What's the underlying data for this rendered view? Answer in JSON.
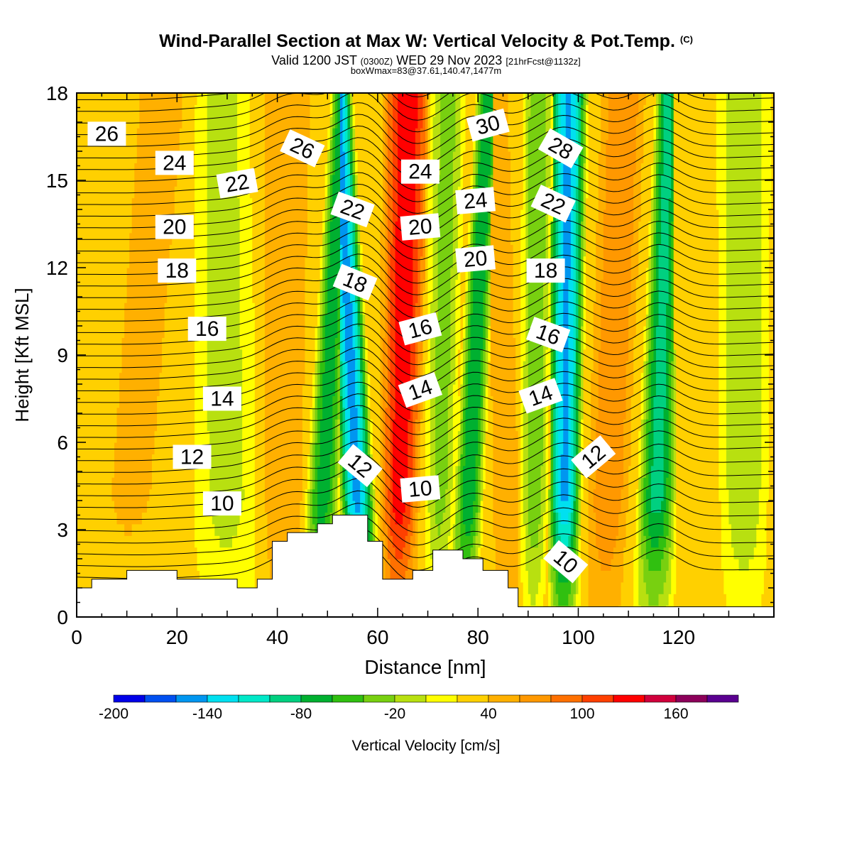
{
  "title": {
    "main": "Wind-Parallel Section at Max W: Vertical Velocity & Pot.Temp.",
    "copyright": "(C)",
    "valid_prefix": "Valid 1200 JST",
    "valid_zulu": "(0300Z)",
    "valid_date": "WED 29 Nov 2023",
    "forecast": "[21hrFcst@1132z]",
    "subtitle": "boxWmax=83@37.61,140.47,1477m"
  },
  "colors": {
    "scale": [
      "#0000e8",
      "#0050f0",
      "#0096f0",
      "#00e0f0",
      "#00e8c8",
      "#00d080",
      "#00b030",
      "#30c010",
      "#78d010",
      "#b8e010",
      "#ffff00",
      "#ffd000",
      "#ffb000",
      "#ff9800",
      "#ff7000",
      "#ff4000",
      "#ff0000",
      "#d0003c",
      "#8c005a",
      "#5a0090"
    ],
    "terrain": "#ffffff",
    "frame": "#000000",
    "isentrope": "#000000"
  },
  "chart_data": {
    "type": "heatmap",
    "xlabel": "Distance [nm]",
    "ylabel": "Height [Kft MSL]",
    "xlim": [
      0,
      139
    ],
    "ylim": [
      0,
      18
    ],
    "x_ticks": [
      0,
      20,
      40,
      60,
      80,
      100,
      120
    ],
    "y_ticks": [
      0,
      3,
      6,
      9,
      12,
      15,
      18
    ],
    "colorbar": {
      "label": "Vertical Velocity [cm/s]",
      "min": -200,
      "max": 200,
      "step": 20,
      "tick_labels": [
        "-200",
        "-140",
        "-80",
        "-20",
        "40",
        "100",
        "160"
      ],
      "tick_values": [
        -200,
        -140,
        -80,
        -20,
        40,
        100,
        160
      ]
    },
    "background_w": 30,
    "w_bands": [
      {
        "x_low": 9,
        "x_high": 17,
        "w": 42
      },
      {
        "x_low": 30,
        "x_high": 29,
        "w": -10
      },
      {
        "x_low": 41,
        "x_high": 42,
        "w": 55
      },
      {
        "x_low": 48,
        "x_high": 53,
        "w": -75
      },
      {
        "x_low": 57,
        "x_high": 52,
        "w": -150
      },
      {
        "x_low": 64,
        "x_high": 66,
        "w": 135
      },
      {
        "x_low": 72,
        "x_high": 74,
        "w": -30
      },
      {
        "x_low": 77,
        "x_high": 82,
        "w": -80
      },
      {
        "x_low": 86,
        "x_high": 84,
        "w": 60
      },
      {
        "x_low": 91,
        "x_high": 92,
        "w": -40
      },
      {
        "x_low": 97,
        "x_high": 98,
        "w": -145
      },
      {
        "x_low": 105,
        "x_high": 109,
        "w": 80
      },
      {
        "x_low": 115,
        "x_high": 118,
        "w": -90
      },
      {
        "x_low": 124,
        "x_high": 120,
        "w": 20
      },
      {
        "x_low": 133,
        "x_high": 133,
        "w": -20
      }
    ],
    "terrain_profile": [
      [
        0,
        1.0
      ],
      [
        3,
        1.3
      ],
      [
        10,
        1.6
      ],
      [
        20,
        1.3
      ],
      [
        32,
        1.0
      ],
      [
        36,
        1.3
      ],
      [
        39,
        2.6
      ],
      [
        42,
        2.9
      ],
      [
        48,
        3.2
      ],
      [
        51,
        3.5
      ],
      [
        58,
        2.6
      ],
      [
        61,
        1.3
      ],
      [
        67,
        1.6
      ],
      [
        71,
        2.3
      ],
      [
        77,
        2.0
      ],
      [
        81,
        1.6
      ],
      [
        86,
        1.0
      ],
      [
        88,
        0.35
      ],
      [
        139,
        0.35
      ]
    ],
    "isentrope_labels": [
      {
        "text": "26",
        "x": 6,
        "y": 16.6,
        "angle": 0
      },
      {
        "text": "24",
        "x": 19.5,
        "y": 15.6,
        "angle": 0
      },
      {
        "text": "20",
        "x": 19.5,
        "y": 13.4,
        "angle": 0
      },
      {
        "text": "18",
        "x": 20,
        "y": 11.9,
        "angle": 0
      },
      {
        "text": "16",
        "x": 26,
        "y": 9.9,
        "angle": 0
      },
      {
        "text": "14",
        "x": 29,
        "y": 7.5,
        "angle": 0
      },
      {
        "text": "12",
        "x": 23,
        "y": 5.5,
        "angle": 0
      },
      {
        "text": "10",
        "x": 29,
        "y": 3.9,
        "angle": 0
      },
      {
        "text": "22",
        "x": 32,
        "y": 14.9,
        "angle": -10
      },
      {
        "text": "26",
        "x": 45,
        "y": 16.1,
        "angle": 25
      },
      {
        "text": "22",
        "x": 55,
        "y": 14.0,
        "angle": 20
      },
      {
        "text": "18",
        "x": 55.5,
        "y": 11.5,
        "angle": 22
      },
      {
        "text": "12",
        "x": 56.5,
        "y": 5.2,
        "angle": 40
      },
      {
        "text": "24",
        "x": 68.5,
        "y": 15.3,
        "angle": 0
      },
      {
        "text": "20",
        "x": 68.5,
        "y": 13.4,
        "angle": -5
      },
      {
        "text": "16",
        "x": 68.5,
        "y": 9.9,
        "angle": -15
      },
      {
        "text": "14",
        "x": 68.5,
        "y": 7.8,
        "angle": -20
      },
      {
        "text": "10",
        "x": 68.5,
        "y": 4.4,
        "angle": -5
      },
      {
        "text": "30",
        "x": 82,
        "y": 16.9,
        "angle": -15
      },
      {
        "text": "24",
        "x": 79.5,
        "y": 14.3,
        "angle": -5
      },
      {
        "text": "20",
        "x": 79.5,
        "y": 12.3,
        "angle": -5
      },
      {
        "text": "28",
        "x": 96.5,
        "y": 16.1,
        "angle": 30
      },
      {
        "text": "22",
        "x": 95,
        "y": 14.2,
        "angle": 25
      },
      {
        "text": "18",
        "x": 93.5,
        "y": 11.9,
        "angle": 0
      },
      {
        "text": "16",
        "x": 94,
        "y": 9.7,
        "angle": 20
      },
      {
        "text": "14",
        "x": 92.5,
        "y": 7.6,
        "angle": -20
      },
      {
        "text": "12",
        "x": 103,
        "y": 5.5,
        "angle": -40
      },
      {
        "text": "10",
        "x": 97.5,
        "y": 1.9,
        "angle": 40
      }
    ]
  }
}
